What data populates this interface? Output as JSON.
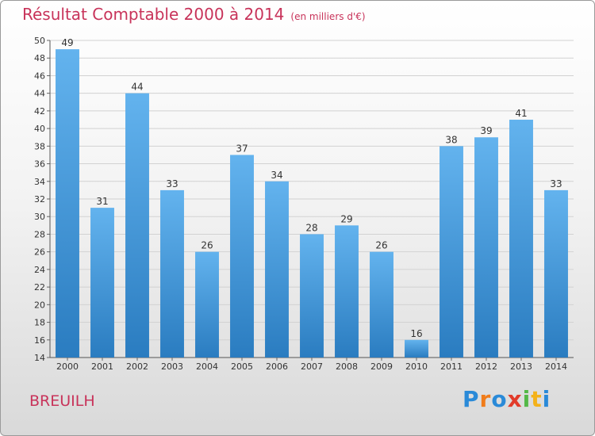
{
  "title": "Résultat Comptable 2000 à 2014",
  "subtitle": "(en milliers d'€)",
  "place": "BREUILH",
  "logo": {
    "text": "Proxiti",
    "letters": [
      "P",
      "r",
      "o",
      "x",
      "i",
      "t",
      "i"
    ],
    "colors": [
      "#2a8ad8",
      "#f07c1a",
      "#2a8ad8",
      "#e23b2a",
      "#54b848",
      "#f4b21a",
      "#2a8ad8"
    ]
  },
  "colors": {
    "bar_light": "#63b3ee",
    "bar_dark": "#2a7cc0",
    "title": "#c8335a"
  },
  "chart_data": {
    "type": "bar",
    "title": "Résultat Comptable 2000 à 2014",
    "subtitle": "(en milliers d'€)",
    "categories": [
      "2000",
      "2001",
      "2002",
      "2003",
      "2004",
      "2005",
      "2006",
      "2007",
      "2008",
      "2009",
      "2010",
      "2011",
      "2012",
      "2013",
      "2014"
    ],
    "values": [
      49,
      31,
      44,
      33,
      26,
      37,
      34,
      28,
      29,
      26,
      16,
      38,
      39,
      41,
      33
    ],
    "ylim": [
      14,
      50
    ],
    "yticks": [
      14,
      16,
      18,
      20,
      22,
      24,
      26,
      28,
      30,
      32,
      34,
      36,
      38,
      40,
      42,
      44,
      46,
      48,
      50
    ],
    "grid": true,
    "xlabel": "",
    "ylabel": ""
  }
}
